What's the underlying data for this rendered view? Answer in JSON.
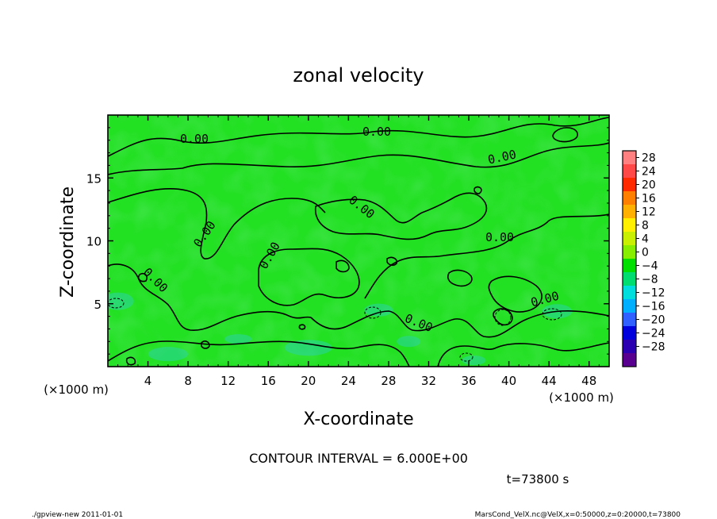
{
  "chart_data": {
    "type": "heatmap",
    "title": "zonal velocity",
    "xlabel": "X-coordinate",
    "ylabel": "Z-coordinate",
    "x_unit": "(×1000 m)",
    "y_unit": "(×1000 m)",
    "xlim": [
      0,
      50
    ],
    "ylim": [
      0,
      20
    ],
    "x_ticks": [
      4,
      8,
      12,
      16,
      20,
      24,
      28,
      32,
      36,
      40,
      44,
      48
    ],
    "y_ticks": [
      5,
      10,
      15
    ],
    "contour_label": "0.00",
    "contour_interval": "CONTOUR INTERVAL = 6.000E+00",
    "time": "t=73800 s",
    "colorbar": {
      "ticks": [
        28,
        24,
        20,
        16,
        12,
        8,
        4,
        0,
        -4,
        -8,
        -12,
        -16,
        -20,
        -24,
        -28
      ],
      "tick_labels": [
        "28",
        "24",
        "20",
        "16",
        "12",
        "8",
        "4",
        "0",
        "−4",
        "−8",
        "−12",
        "−16",
        "−20",
        "−24",
        "−28"
      ],
      "colors": [
        "#ff8080",
        "#ff4848",
        "#ff2a00",
        "#ff8000",
        "#ffb000",
        "#fff000",
        "#c8f000",
        "#88ee00",
        "#00e000",
        "#00dd70",
        "#00dddd",
        "#00b0ff",
        "#3060ff",
        "#0000dd",
        "#2a00b0",
        "#5a0090"
      ]
    },
    "dominant_value_color": "#22e022",
    "cool_spot_color": "#2ad4a8"
  },
  "footer": {
    "left": "./gpview-new  2011-01-01",
    "right": "MarsCond_VelX.nc@VelX,x=0:50000,z=0:20000,t=73800"
  }
}
